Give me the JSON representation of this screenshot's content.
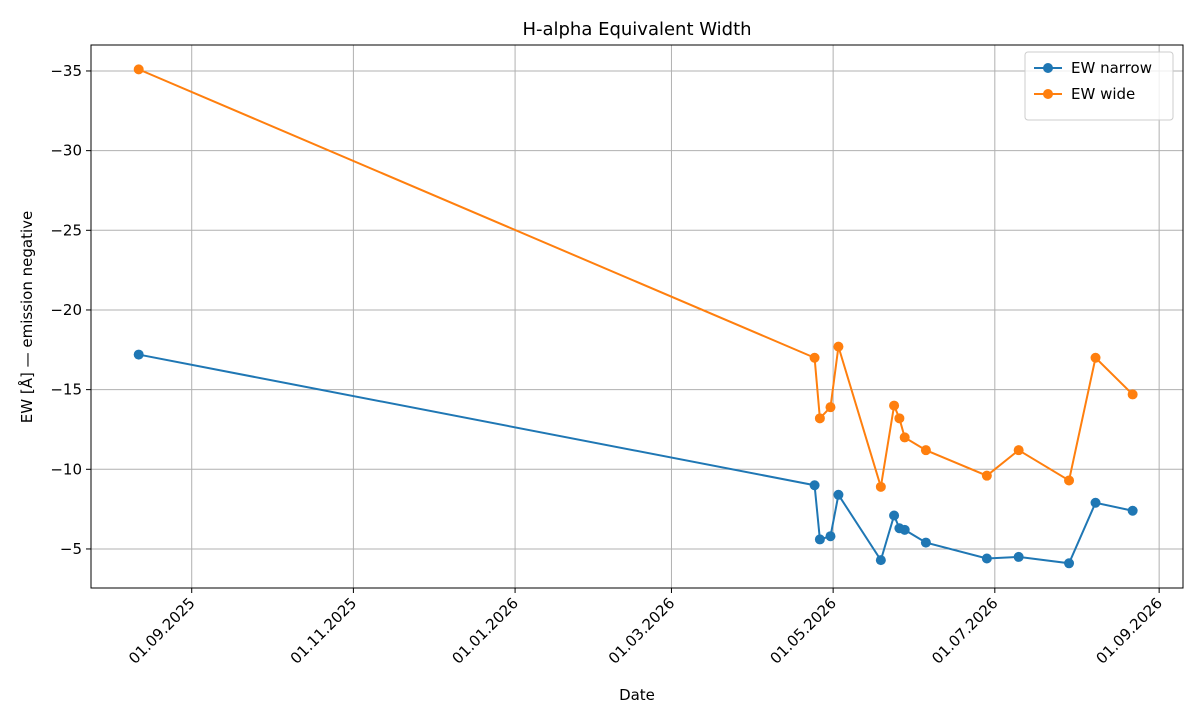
{
  "chart_data": {
    "type": "line",
    "title": "H-alpha Equivalent Width",
    "xlabel": "Date",
    "ylabel": "EW [Å] — emission negative",
    "x": [
      "2025-08-12",
      "2026-04-24",
      "2026-04-26",
      "2026-04-30",
      "2026-05-03",
      "2026-05-19",
      "2026-05-24",
      "2026-05-26",
      "2026-05-28",
      "2026-06-05",
      "2026-06-28",
      "2026-07-10",
      "2026-07-29",
      "2026-08-08",
      "2026-08-22"
    ],
    "series": [
      {
        "name": "EW narrow",
        "color": "#1f77b4",
        "values": [
          -17.2,
          -9.0,
          -5.6,
          -5.8,
          -8.4,
          -4.3,
          -7.1,
          -6.3,
          -6.2,
          -5.4,
          -4.4,
          -4.5,
          -4.1,
          -7.9,
          -7.4
        ]
      },
      {
        "name": "EW wide",
        "color": "#ff7f0e",
        "values": [
          -35.1,
          -17.0,
          -13.2,
          -13.9,
          -17.7,
          -8.9,
          -14.0,
          -13.2,
          -12.0,
          -11.2,
          -9.6,
          -11.2,
          -9.3,
          -17.0,
          -14.7
        ]
      }
    ],
    "xlim": [
      "2025-07-25",
      "2026-09-10"
    ],
    "xticks": [
      {
        "value": "2025-09-01",
        "label": "01.09.2025"
      },
      {
        "value": "2025-11-01",
        "label": "01.11.2025"
      },
      {
        "value": "2026-01-01",
        "label": "01.01.2026"
      },
      {
        "value": "2026-03-01",
        "label": "01.03.2026"
      },
      {
        "value": "2026-05-01",
        "label": "01.05.2026"
      },
      {
        "value": "2026-07-01",
        "label": "01.07.2026"
      },
      {
        "value": "2026-09-01",
        "label": "01.09.2026"
      }
    ],
    "ylim": [
      -2.55,
      -36.63
    ],
    "yticks": [
      {
        "value": -35,
        "label": "−35"
      },
      {
        "value": -30,
        "label": "−30"
      },
      {
        "value": -25,
        "label": "−25"
      },
      {
        "value": -20,
        "label": "−20"
      },
      {
        "value": -15,
        "label": "−15"
      },
      {
        "value": -10,
        "label": "−10"
      },
      {
        "value": -5,
        "label": "−5"
      }
    ],
    "grid": true,
    "legend": "upper right"
  }
}
